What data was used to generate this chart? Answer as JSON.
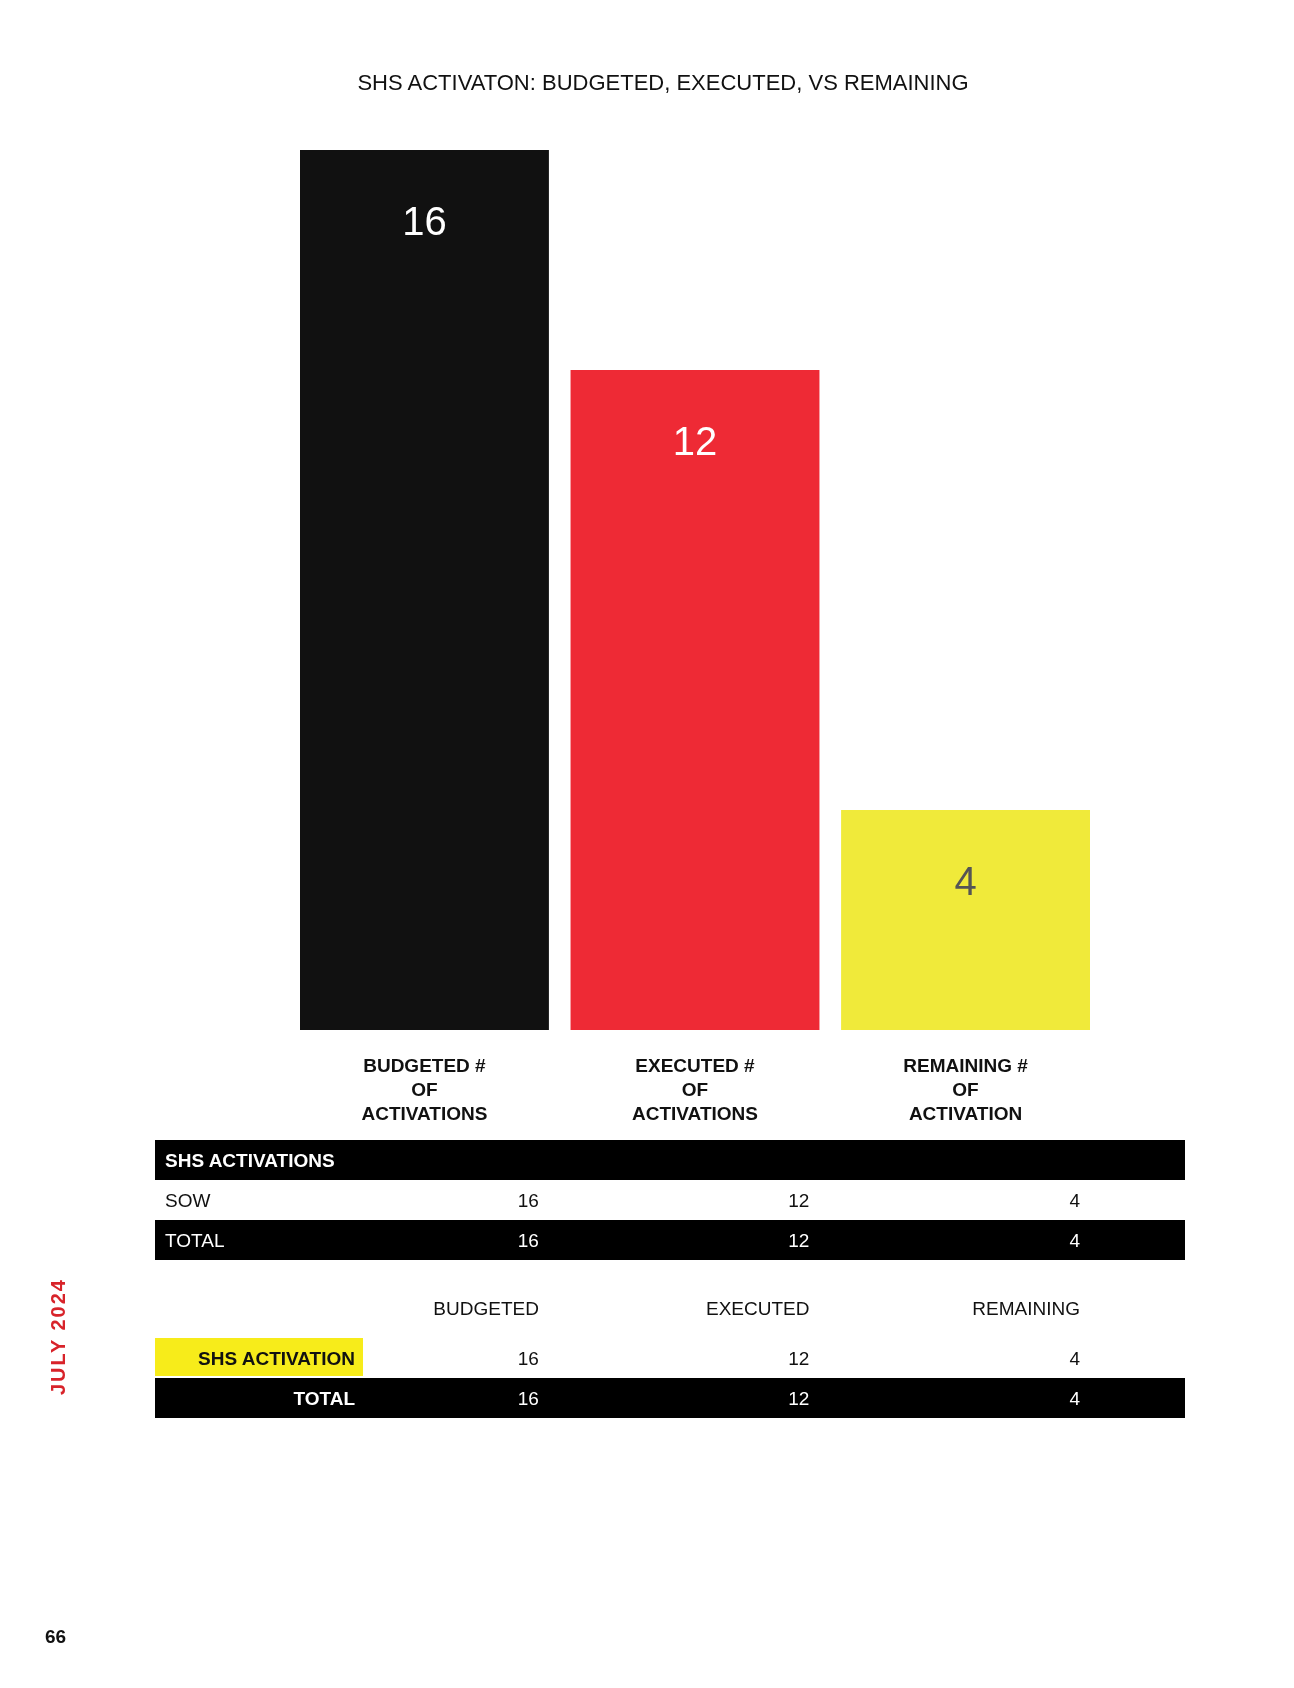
{
  "chart_data": [
    {
      "type": "bar",
      "title": "SHS ACTIVATON: BUDGETED, EXECUTED, VS REMAINING",
      "categories": [
        "BUDGETED # OF ACTIVATIONS",
        "EXECUTED # OF ACTIVATIONS",
        "REMAINING # OF ACTIVATION"
      ],
      "values": [
        16,
        12,
        4
      ],
      "colors": [
        "#111111",
        "#ee2a35",
        "#f0ea3a"
      ],
      "data_labels": true
    },
    {
      "type": "other",
      "annotations": [
        "SHS ACTIVATIONS",
        "SOW",
        "16",
        "12",
        "4",
        "TOTAL",
        "16",
        "12",
        "4",
        "BUDGETED",
        "EXECUTED",
        "REMAINING",
        "SHS ACTIVATION",
        "16",
        "12",
        "4",
        "TOTAL",
        "16",
        "12",
        "4",
        "JULY 2024",
        "66"
      ]
    }
  ]
}
